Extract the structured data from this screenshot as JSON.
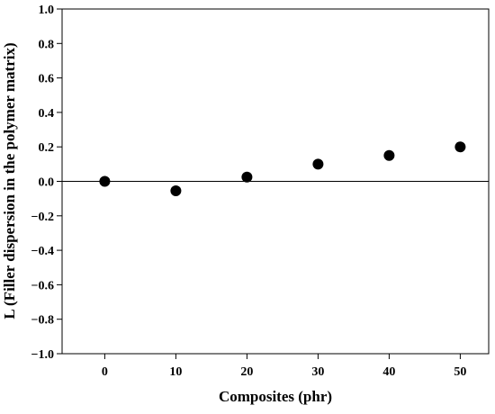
{
  "chart_data": {
    "type": "scatter",
    "title": "",
    "xlabel": "Composites (phr)",
    "ylabel": "L (Filler dispersion in the polymer matrix)",
    "x": [
      0,
      10,
      20,
      30,
      40,
      50
    ],
    "y": [
      0.0,
      -0.055,
      0.025,
      0.1,
      0.15,
      0.2
    ],
    "xlim": [
      -6,
      54
    ],
    "ylim": [
      -1.0,
      1.0
    ],
    "xticks": [
      0,
      10,
      20,
      30,
      40,
      50
    ],
    "xtick_labels": [
      "0",
      "10",
      "20",
      "30",
      "40",
      "50"
    ],
    "yticks": [
      1.0,
      0.8,
      0.6,
      0.4,
      0.2,
      0.0,
      -0.2,
      -0.4,
      -0.6,
      -0.8,
      -1.0
    ],
    "ytick_labels": [
      "1.0",
      "0.8",
      "0.6",
      "0.4",
      "0.2",
      "0.0",
      "−0.2",
      "−0.4",
      "−0.6",
      "−0.8",
      "−1.0"
    ],
    "reference_line_y": 0,
    "grid": false,
    "marker_color": "#000000"
  }
}
